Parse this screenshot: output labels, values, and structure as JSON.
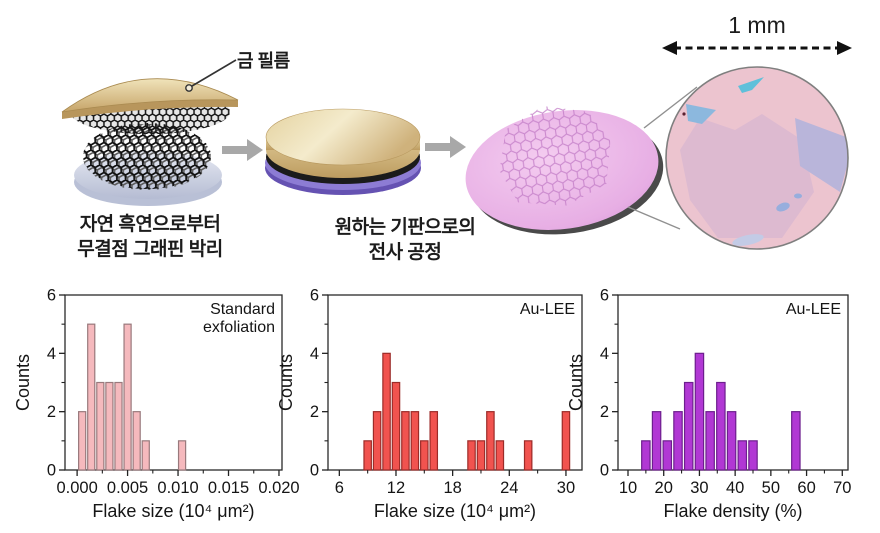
{
  "figure": {
    "schematic": {
      "gold_film_label": "금 필름",
      "step1_caption": [
        "자연 흑연으로부터",
        "무결점 그래핀 박리"
      ],
      "step2_caption": [
        "원하는 기판으로의",
        "전사 공정"
      ],
      "scale_bar_label": "1 mm"
    },
    "colors": {
      "gold": "#d9bd87",
      "graphite_black": "#161616",
      "substrate_purple": "#8a79ce",
      "wafer_pink": "#e7aee4",
      "micrograph_pink": "#ecc4cf",
      "micrograph_blue": "#8cb8de",
      "hist1_fill": "#f5b9bd",
      "hist1_stroke": "#99797c",
      "hist2_fill": "#f1534f",
      "hist2_stroke": "#9c2b28",
      "hist3_fill": "#b138d4",
      "hist3_stroke": "#6d1f8e"
    }
  },
  "chart_data": [
    {
      "type": "bar",
      "annotation": [
        "Standard",
        "exfoliation"
      ],
      "xlabel": "Flake size (10⁴ μm²)",
      "ylabel": "Counts",
      "x": [
        0.0005,
        0.0014,
        0.0023,
        0.0032,
        0.0041,
        0.005,
        0.0059,
        0.0068,
        0.0104
      ],
      "values": [
        2,
        5,
        3,
        3,
        3,
        5,
        2,
        1,
        1
      ],
      "bin_width": 0.0009,
      "xlim": [
        -0.0012,
        0.0203
      ],
      "ylim": [
        0,
        6
      ],
      "x_ticks": [
        0.0,
        0.005,
        0.01,
        0.015,
        0.02
      ],
      "x_tick_labels": [
        "0.000",
        "0.005",
        "0.010",
        "0.015",
        "0.020"
      ],
      "x_minor_ticks": [
        0.0025,
        0.0075,
        0.0125,
        0.0175
      ],
      "y_ticks": [
        0,
        2,
        4,
        6
      ],
      "y_tick_labels": [
        "0",
        "2",
        "4",
        "6"
      ],
      "y_minor_ticks": [
        1,
        3,
        5
      ],
      "bar_fill": "#f5b9bd",
      "bar_stroke": "#99797c",
      "grid": false,
      "legend_position": "none"
    },
    {
      "type": "bar",
      "annotation": [
        "Au-LEE"
      ],
      "xlabel": "Flake size (10⁴ μm²)",
      "ylabel": "Counts",
      "x": [
        9,
        10,
        11,
        12,
        13,
        14,
        15,
        16,
        20,
        21,
        22,
        23,
        26,
        30
      ],
      "values": [
        1,
        2,
        4,
        3,
        2,
        2,
        1,
        2,
        1,
        1,
        2,
        1,
        1,
        2
      ],
      "bin_width": 1,
      "xlim": [
        4.8,
        31.7
      ],
      "ylim": [
        0,
        6
      ],
      "x_ticks": [
        6,
        12,
        18,
        24,
        30
      ],
      "x_tick_labels": [
        "6",
        "12",
        "18",
        "24",
        "30"
      ],
      "x_minor_ticks": [
        9,
        15,
        21,
        27
      ],
      "y_ticks": [
        0,
        2,
        4,
        6
      ],
      "y_tick_labels": [
        "0",
        "2",
        "4",
        "6"
      ],
      "y_minor_ticks": [
        1,
        3,
        5
      ],
      "bar_fill": "#f1534f",
      "bar_stroke": "#9c2b28",
      "grid": false,
      "legend_position": "none"
    },
    {
      "type": "bar",
      "annotation": [
        "Au-LEE"
      ],
      "xlabel": "Flake density (%)",
      "ylabel": "Counts",
      "x": [
        15,
        18,
        21,
        24,
        27,
        30,
        33,
        36,
        39,
        42,
        45,
        57
      ],
      "values": [
        1,
        2,
        1,
        2,
        3,
        4,
        2,
        3,
        2,
        1,
        1,
        2
      ],
      "bin_width": 3,
      "xlim": [
        7.2,
        71.6
      ],
      "ylim": [
        0,
        6
      ],
      "x_ticks": [
        10,
        20,
        30,
        40,
        50,
        60,
        70
      ],
      "x_tick_labels": [
        "10",
        "20",
        "30",
        "40",
        "50",
        "60",
        "70"
      ],
      "x_minor_ticks": [
        15,
        25,
        35,
        45,
        55,
        65
      ],
      "y_ticks": [
        0,
        2,
        4,
        6
      ],
      "y_tick_labels": [
        "0",
        "2",
        "4",
        "6"
      ],
      "y_minor_ticks": [
        1,
        3,
        5
      ],
      "bar_fill": "#b138d4",
      "bar_stroke": "#6d1f8e",
      "grid": false,
      "legend_position": "none"
    }
  ]
}
